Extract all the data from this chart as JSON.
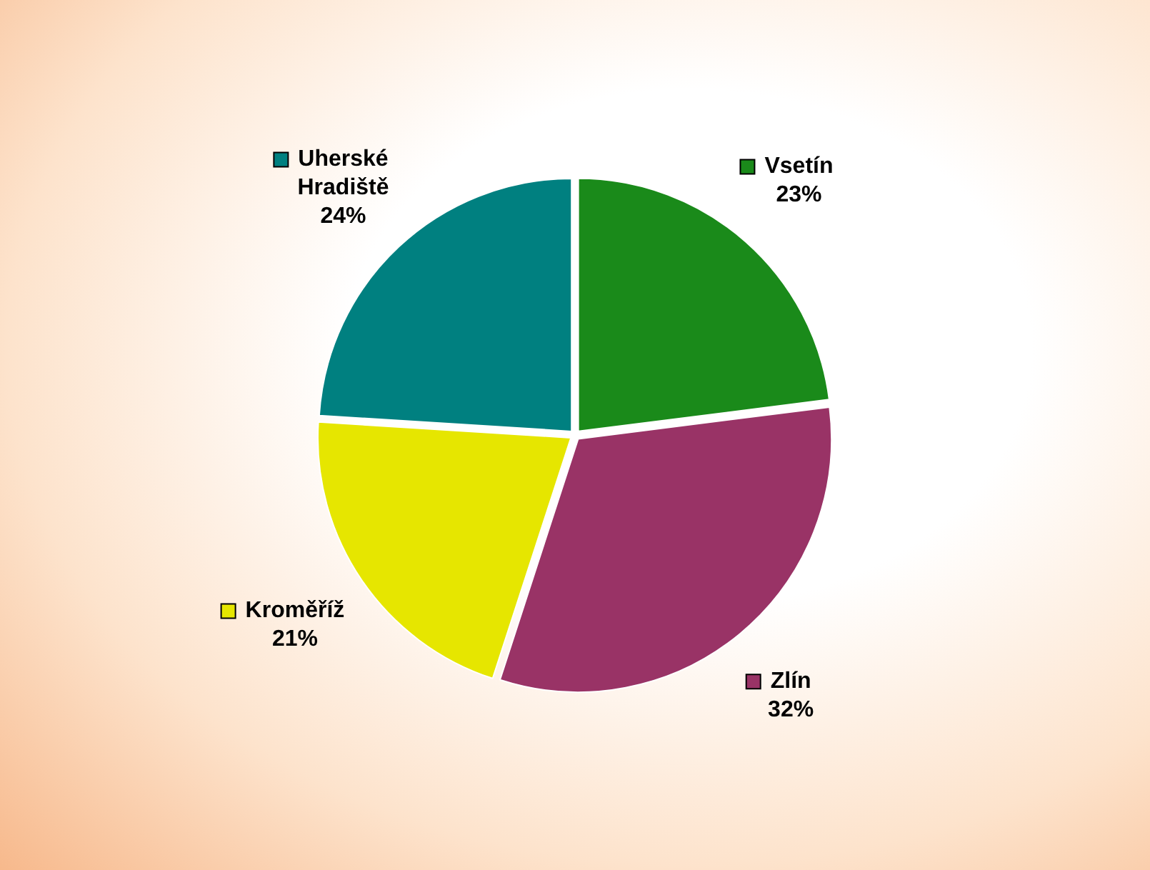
{
  "chart_data": {
    "type": "pie",
    "categories": [
      "Vsetín",
      "Zlín",
      "Kroměříž",
      "Uherské Hradiště"
    ],
    "values": [
      23,
      32,
      21,
      24
    ],
    "colors": [
      "#1a8a1a",
      "#993366",
      "#e6e600",
      "#008080"
    ],
    "value_labels": [
      "23%",
      "32%",
      "21%",
      "24%"
    ],
    "legend": "top"
  }
}
